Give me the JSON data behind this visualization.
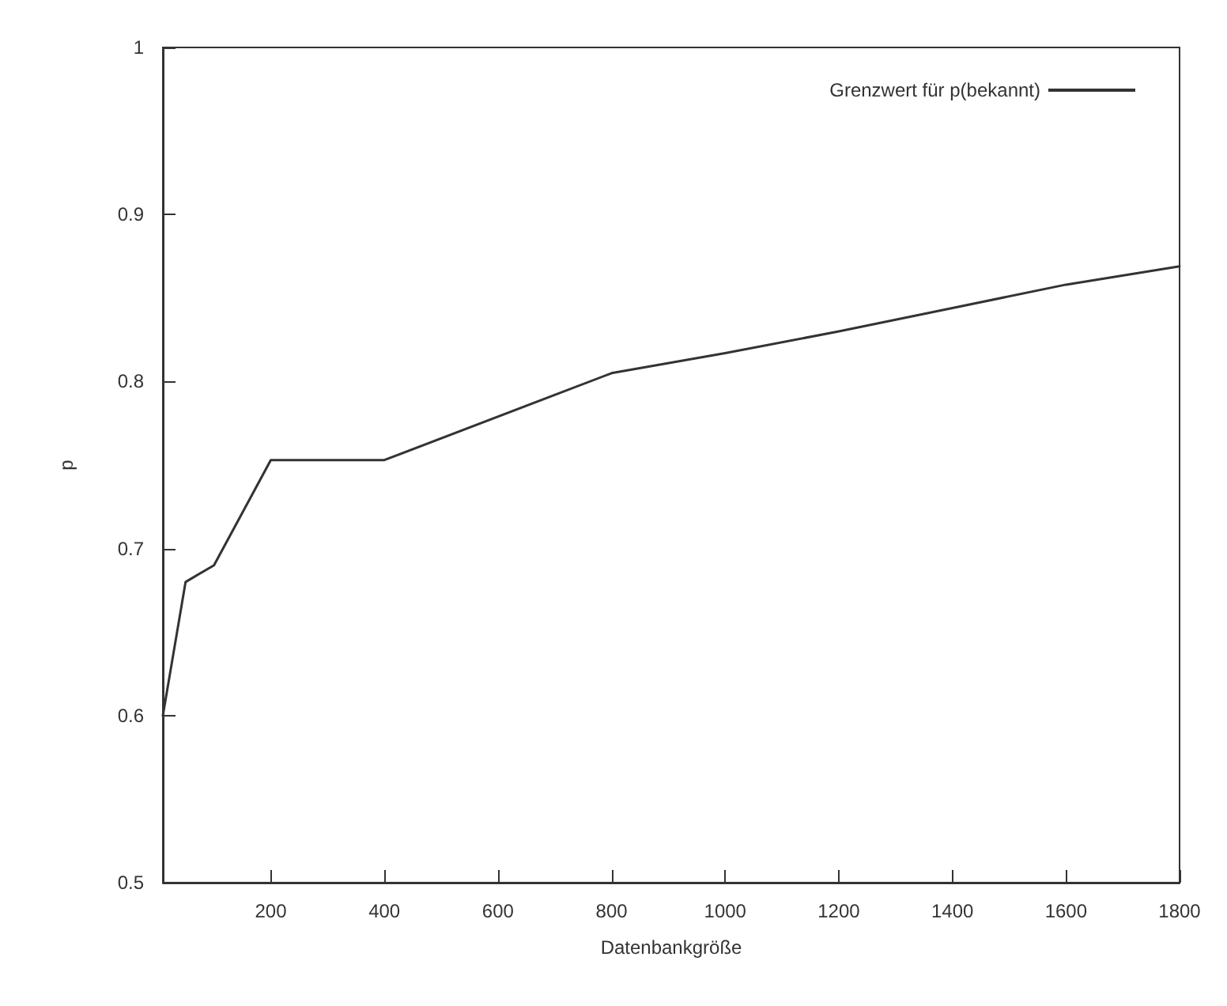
{
  "chart_data": {
    "type": "line",
    "xlabel": "Datenbankgröße",
    "ylabel": "p",
    "x": [
      10,
      50,
      100,
      200,
      400,
      800,
      1000,
      1200,
      1400,
      1600,
      1800
    ],
    "series": [
      {
        "name": "Grenzwert für p(bekannt)",
        "color": "#333333",
        "values": [
          0.6,
          0.68,
          0.69,
          0.753,
          0.753,
          0.805,
          0.817,
          0.83,
          0.844,
          0.858,
          0.869
        ]
      }
    ],
    "xlim": [
      10,
      1800
    ],
    "xticks": [
      200,
      400,
      600,
      800,
      1000,
      1200,
      1400,
      1600,
      1800
    ],
    "ylim": [
      0.5,
      1
    ],
    "yticks": [
      0.5,
      0.6,
      0.7,
      0.8,
      0.9,
      1
    ],
    "grid": false,
    "legend": "top right",
    "marker": "none",
    "line_style": "solid"
  }
}
